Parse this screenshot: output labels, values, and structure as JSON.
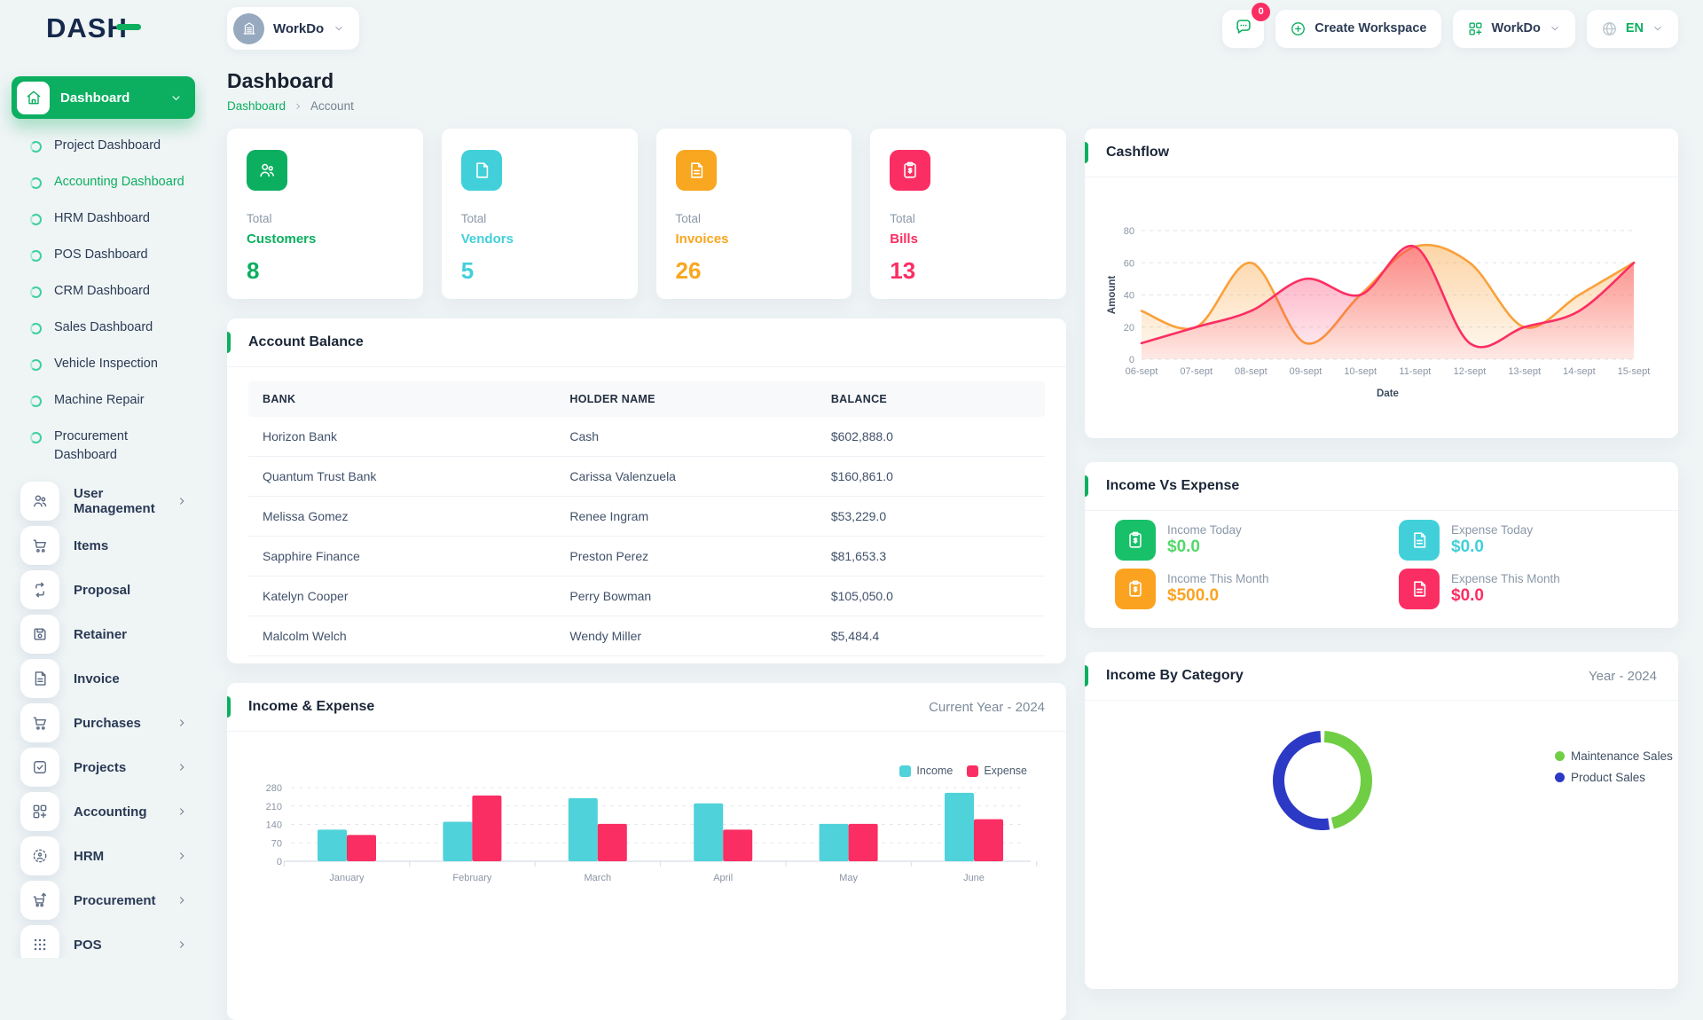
{
  "brand": {
    "name": "DASH"
  },
  "topbar": {
    "workspace_label": "WorkDo",
    "messages_badge": "0",
    "create_workspace_label": "Create Workspace",
    "workdo_label": "WorkDo",
    "language_label": "EN"
  },
  "sidebar": {
    "dashboard_label": "Dashboard",
    "dashboard_children": [
      {
        "label": "Project Dashboard",
        "active": false
      },
      {
        "label": "Accounting Dashboard",
        "active": true
      },
      {
        "label": "HRM Dashboard",
        "active": false
      },
      {
        "label": "POS Dashboard",
        "active": false
      },
      {
        "label": "CRM Dashboard",
        "active": false
      },
      {
        "label": "Sales Dashboard",
        "active": false
      },
      {
        "label": "Vehicle Inspection",
        "active": false
      },
      {
        "label": "Machine Repair",
        "active": false
      },
      {
        "label": "Procurement Dashboard",
        "active": false
      }
    ],
    "items": [
      {
        "label": "User Management",
        "icon": "users",
        "chevron": true
      },
      {
        "label": "Items",
        "icon": "cart",
        "chevron": false
      },
      {
        "label": "Proposal",
        "icon": "swap",
        "chevron": false
      },
      {
        "label": "Retainer",
        "icon": "floppy",
        "chevron": false
      },
      {
        "label": "Invoice",
        "icon": "invoice",
        "chevron": false
      },
      {
        "label": "Purchases",
        "icon": "cart",
        "chevron": true
      },
      {
        "label": "Projects",
        "icon": "check",
        "chevron": true
      },
      {
        "label": "Accounting",
        "icon": "gridplus",
        "chevron": true
      },
      {
        "label": "HRM",
        "icon": "hrm",
        "chevron": true
      },
      {
        "label": "Procurement",
        "icon": "cartup",
        "chevron": true
      },
      {
        "label": "POS",
        "icon": "dots",
        "chevron": true
      }
    ]
  },
  "page": {
    "title": "Dashboard",
    "breadcrumb": [
      "Dashboard",
      "Account"
    ]
  },
  "stats": [
    {
      "top": "Total",
      "name": "Customers",
      "value": "8",
      "color": "#0caf60",
      "icon": "users"
    },
    {
      "top": "Total",
      "name": "Vendors",
      "value": "5",
      "color": "#41d0da",
      "icon": "note"
    },
    {
      "top": "Total",
      "name": "Invoices",
      "value": "26",
      "color": "#f9a620",
      "icon": "invoice"
    },
    {
      "top": "Total",
      "name": "Bills",
      "value": "13",
      "color": "#fb2e63",
      "icon": "clipboard"
    }
  ],
  "account_balance": {
    "title": "Account Balance",
    "columns": [
      "BANK",
      "HOLDER NAME",
      "BALANCE"
    ],
    "rows": [
      [
        "Horizon Bank",
        "Cash",
        "$602,888.0"
      ],
      [
        "Quantum Trust Bank",
        "Carissa Valenzuela",
        "$160,861.0"
      ],
      [
        "Melissa Gomez",
        "Renee Ingram",
        "$53,229.0"
      ],
      [
        "Sapphire Finance",
        "Preston Perez",
        "$81,653.3"
      ],
      [
        "Katelyn Cooper",
        "Perry Bowman",
        "$105,050.0"
      ],
      [
        "Malcolm Welch",
        "Wendy Miller",
        "$5,484.4"
      ]
    ]
  },
  "income_vs_expense": {
    "title": "Income Vs Expense",
    "items": [
      {
        "label": "Income Today",
        "value": "$0.0",
        "tile_color": "#18c06a",
        "value_color": "#53d86a",
        "icon": "clipboard"
      },
      {
        "label": "Expense Today",
        "value": "$0.0",
        "tile_color": "#41d0da",
        "value_color": "#41d0da",
        "icon": "invoice"
      },
      {
        "label": "Income This Month",
        "value": "$500.0",
        "tile_color": "#fba321",
        "value_color": "#fba321",
        "icon": "clipboard"
      },
      {
        "label": "Expense This Month",
        "value": "$0.0",
        "tile_color": "#fb2e63",
        "value_color": "#fb2e63",
        "icon": "invoice"
      }
    ]
  },
  "chart_data": [
    {
      "id": "cashflow",
      "type": "area",
      "title": "Cashflow",
      "x": [
        "06-sept",
        "07-sept",
        "08-sept",
        "09-sept",
        "10-sept",
        "11-sept",
        "12-sept",
        "13-sept",
        "14-sept",
        "15-sept"
      ],
      "series": [
        {
          "name": "series-orange",
          "color": "#f9a13b",
          "values": [
            30,
            20,
            60,
            10,
            40,
            70,
            60,
            20,
            40,
            60
          ]
        },
        {
          "name": "series-pink",
          "color": "#fb2e63",
          "values": [
            10,
            20,
            30,
            50,
            40,
            70,
            10,
            20,
            30,
            60
          ]
        }
      ],
      "xlabel": "Date",
      "ylabel": "Amount",
      "ylim": [
        0,
        80
      ],
      "yticks": [
        0,
        20,
        40,
        60,
        80
      ],
      "grid": "dashed-horizontal"
    },
    {
      "id": "income-expense",
      "type": "bar",
      "title": "Income & Expense",
      "period": "Current Year - 2024",
      "categories": [
        "January",
        "February",
        "March",
        "April",
        "May",
        "June"
      ],
      "series": [
        {
          "name": "Income",
          "color": "#4fd2da",
          "values": [
            120,
            150,
            240,
            220,
            142,
            260
          ]
        },
        {
          "name": "Expense",
          "color": "#fb2e63",
          "values": [
            100,
            250,
            142,
            120,
            142,
            160
          ]
        }
      ],
      "ylim": [
        0,
        280
      ],
      "yticks": [
        0,
        70,
        140,
        210,
        280
      ],
      "legend_position": "top-right",
      "grid": "dashed-horizontal"
    },
    {
      "id": "income-by-category",
      "type": "donut",
      "title": "Income By Category",
      "period": "Year - 2024",
      "labels": [
        "Maintenance Sales",
        "Product Sales"
      ],
      "colors": [
        "#70ce44",
        "#2c39c5"
      ],
      "values": [
        47,
        53
      ],
      "legend_position": "right"
    }
  ]
}
